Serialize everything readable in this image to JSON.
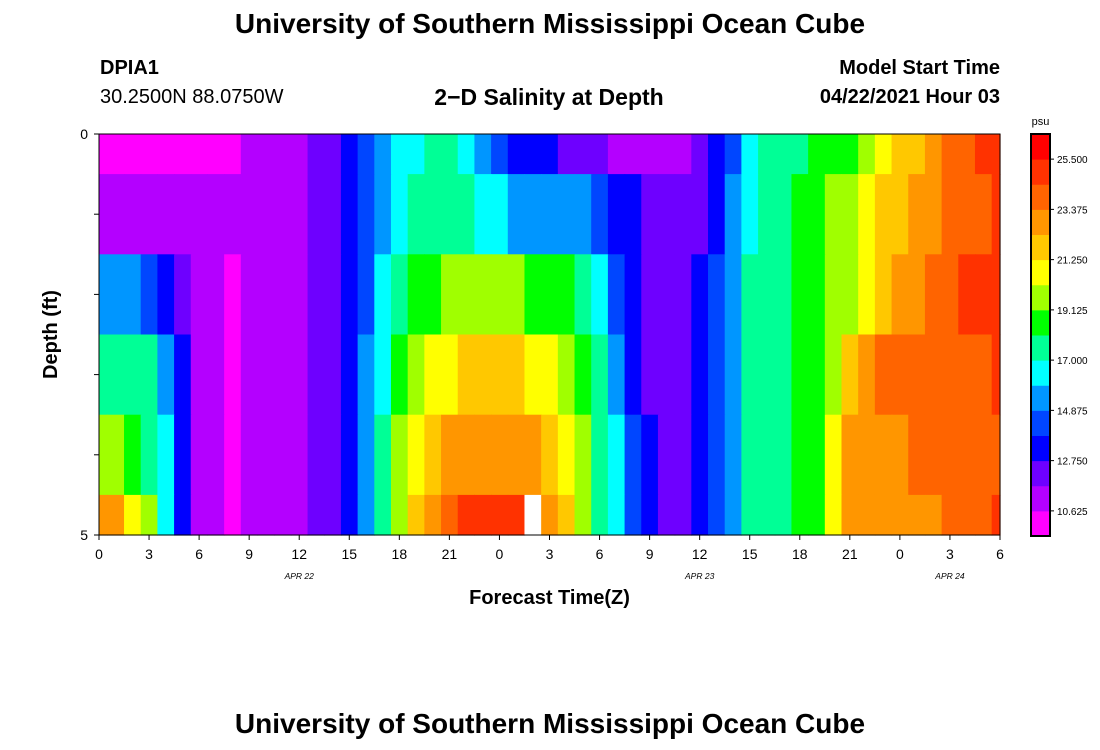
{
  "header": {
    "title": "University of Southern Mississippi Ocean Cube",
    "station_id": "DPIA1",
    "station_coords": "30.2500N  88.0750W",
    "plot_title": "2−D Salinity at Depth",
    "model_start_label": "Model Start Time",
    "model_start_value": "04/22/2021 Hour 03"
  },
  "footer": {
    "title": "University of Southern Mississippi Ocean Cube"
  },
  "chart_data": {
    "type": "heatmap",
    "title": "2−D Salinity at Depth",
    "xlabel": "Forecast Time(Z)",
    "ylabel": "Depth (ft)",
    "x_hours": [
      0,
      1,
      2,
      3,
      4,
      5,
      6,
      7,
      8,
      9,
      10,
      11,
      12,
      13,
      14,
      15,
      16,
      17,
      18,
      19,
      20,
      21,
      22,
      23,
      24,
      25,
      26,
      27,
      28,
      29,
      30,
      31,
      32,
      33,
      34,
      35,
      36,
      37,
      38,
      39,
      40,
      41,
      42,
      43,
      44,
      45,
      46,
      47,
      48,
      49,
      50,
      51,
      52,
      53,
      54
    ],
    "xlim": [
      0,
      54
    ],
    "x_tick_values": [
      0,
      3,
      6,
      9,
      12,
      15,
      18,
      21,
      24,
      27,
      30,
      33,
      36,
      39,
      42,
      45,
      48,
      51,
      54
    ],
    "x_tick_labels": [
      "0",
      "3",
      "6",
      "9",
      "12",
      "15",
      "18",
      "21",
      "0",
      "3",
      "6",
      "9",
      "12",
      "15",
      "18",
      "21",
      "0",
      "3",
      "6"
    ],
    "date_labels": [
      {
        "label": "APR  22",
        "x": 12
      },
      {
        "label": "APR  23",
        "x": 36
      },
      {
        "label": "APR  24",
        "x": 51
      }
    ],
    "depth_rows": [
      0,
      1,
      2,
      3,
      4,
      5
    ],
    "ylim": [
      0,
      5
    ],
    "y_tick_values": [
      0,
      1,
      2,
      3,
      4,
      5
    ],
    "y_tick_labels": [
      "0",
      "",
      "",
      "",
      "",
      "5"
    ],
    "keyframes_x": [
      0,
      1,
      2,
      3,
      4,
      5,
      6,
      8,
      10,
      12,
      14,
      15,
      16,
      17,
      18,
      19,
      20,
      21,
      22,
      23,
      24,
      25,
      26,
      27,
      28,
      29,
      30,
      31,
      32,
      33,
      34,
      35,
      36,
      37,
      38,
      39,
      40,
      41,
      42,
      43,
      44,
      45,
      46,
      47,
      48,
      49,
      50,
      51,
      52,
      53,
      54
    ],
    "keyframes_rows": [
      [
        9.0,
        9.0,
        9.0,
        9.0,
        9.5,
        10.0,
        10.4,
        10.6,
        10.8,
        11.5,
        12.3,
        13.0,
        14.5,
        15.5,
        16.8,
        16.5,
        17.5,
        18.0,
        16.0,
        15.5,
        14.5,
        13.6,
        13.2,
        12.8,
        12.5,
        12.3,
        12.0,
        11.5,
        11.0,
        10.8,
        11.0,
        11.5,
        12.3,
        13.3,
        14.5,
        16.5,
        17.5,
        18.0,
        18.0,
        18.5,
        18.5,
        19.0,
        19.5,
        20.5,
        21.5,
        22.0,
        23.0,
        23.5,
        24.0,
        24.5,
        25.0
      ],
      [
        11.5,
        11.6,
        11.6,
        11.6,
        11.5,
        11.2,
        11.0,
        10.8,
        10.9,
        11.5,
        12.3,
        12.9,
        14.5,
        15.5,
        16.5,
        17.0,
        17.3,
        17.5,
        17.0,
        16.5,
        16.0,
        15.8,
        15.6,
        15.6,
        15.8,
        15.3,
        14.5,
        13.4,
        12.8,
        12.0,
        11.8,
        12.0,
        12.5,
        13.5,
        15.0,
        16.5,
        17.5,
        18.0,
        18.5,
        18.8,
        19.5,
        20.0,
        20.5,
        21.5,
        22.0,
        22.5,
        23.0,
        23.5,
        24.0,
        24.2,
        24.5
      ],
      [
        15.0,
        15.0,
        15.0,
        14.5,
        13.8,
        12.5,
        11.0,
        10.6,
        10.9,
        11.5,
        12.3,
        13.0,
        14.5,
        16.0,
        18.0,
        18.5,
        19.0,
        19.5,
        19.5,
        19.5,
        19.5,
        19.3,
        19.0,
        18.8,
        18.5,
        17.5,
        16.5,
        14.5,
        13.2,
        12.5,
        12.3,
        12.5,
        13.0,
        14.0,
        15.5,
        17.0,
        17.5,
        18.0,
        18.5,
        19.0,
        19.5,
        20.0,
        21.0,
        22.0,
        22.5,
        23.0,
        23.5,
        24.0,
        24.5,
        24.5,
        25.0
      ],
      [
        17.5,
        17.5,
        17.5,
        17.0,
        15.5,
        13.0,
        11.0,
        10.6,
        10.9,
        11.5,
        12.3,
        13.2,
        15.0,
        16.5,
        18.5,
        19.5,
        20.5,
        21.0,
        21.5,
        21.5,
        21.5,
        21.3,
        21.0,
        20.5,
        20.0,
        19.0,
        17.5,
        15.5,
        13.5,
        12.5,
        12.3,
        12.5,
        13.0,
        14.0,
        15.5,
        17.0,
        17.5,
        18.0,
        18.5,
        19.0,
        20.0,
        21.5,
        23.0,
        23.5,
        23.5,
        23.7,
        23.8,
        24.0,
        24.0,
        24.3,
        24.5
      ],
      [
        20.0,
        19.5,
        19.0,
        18.0,
        16.5,
        13.5,
        11.0,
        10.6,
        10.9,
        11.5,
        12.3,
        13.5,
        15.5,
        17.0,
        19.5,
        21.0,
        22.0,
        22.5,
        23.0,
        23.0,
        23.0,
        23.0,
        22.5,
        22.0,
        21.0,
        19.5,
        18.0,
        16.5,
        14.0,
        12.8,
        12.3,
        12.5,
        13.0,
        14.0,
        15.5,
        17.0,
        17.5,
        18.0,
        18.5,
        19.0,
        20.5,
        22.5,
        23.0,
        23.0,
        23.2,
        23.5,
        23.5,
        23.5,
        23.5,
        24.0,
        24.0
      ],
      [
        23.0,
        22.5,
        21.0,
        19.5,
        16.5,
        13.5,
        11.0,
        10.6,
        10.9,
        11.5,
        12.3,
        13.8,
        15.5,
        17.0,
        19.5,
        21.5,
        23.0,
        24.0,
        25.0,
        25.0,
        25.0,
        24.5,
        24.0,
        23.0,
        21.5,
        19.5,
        17.5,
        16.5,
        14.0,
        12.8,
        12.3,
        12.5,
        13.0,
        14.0,
        15.5,
        17.0,
        17.5,
        18.0,
        18.5,
        19.0,
        20.5,
        22.5,
        23.0,
        23.0,
        23.0,
        23.0,
        23.2,
        23.5,
        23.8,
        24.0,
        24.5
      ]
    ],
    "missing_cells": [
      {
        "x": 26,
        "row": 5
      }
    ],
    "colorbar": {
      "unit": "psu",
      "min": 9.5625,
      "max": 26.5625,
      "tick_values": [
        25.5,
        23.375,
        21.25,
        19.125,
        17.0,
        14.875,
        12.75,
        10.625
      ],
      "tick_labels": [
        "25.500",
        "23.375",
        "21.250",
        "19.125",
        "17.000",
        "14.875",
        "12.750",
        "10.625"
      ],
      "colors": [
        "#ff00ff",
        "#b400ff",
        "#6e00ff",
        "#0000ff",
        "#0046ff",
        "#0096ff",
        "#00ffff",
        "#00ff96",
        "#00ff00",
        "#a0ff00",
        "#ffff00",
        "#ffc800",
        "#ff9600",
        "#ff6400",
        "#ff3200",
        "#ff0000"
      ]
    },
    "grid": false
  }
}
